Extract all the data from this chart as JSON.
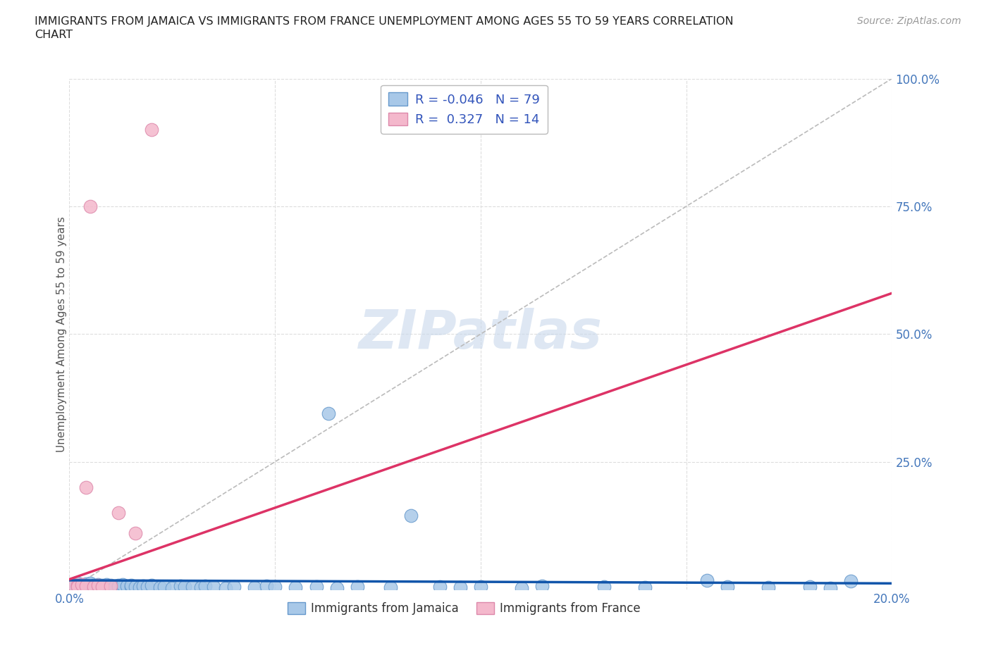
{
  "title_line1": "IMMIGRANTS FROM JAMAICA VS IMMIGRANTS FROM FRANCE UNEMPLOYMENT AMONG AGES 55 TO 59 YEARS CORRELATION",
  "title_line2": "CHART",
  "source": "Source: ZipAtlas.com",
  "ylabel": "Unemployment Among Ages 55 to 59 years",
  "xlim": [
    0.0,
    0.2
  ],
  "ylim": [
    0.0,
    1.0
  ],
  "jamaica_color": "#A8C8E8",
  "jamaica_edge_color": "#6699CC",
  "france_color": "#F4B8CC",
  "france_edge_color": "#DD88AA",
  "jamaica_trend_color": "#1155AA",
  "france_trend_color": "#DD3366",
  "diag_color": "#BBBBBB",
  "grid_color": "#DDDDDD",
  "tick_color": "#4477BB",
  "label_color": "#555555",
  "legend_label_jamaica": "Immigrants from Jamaica",
  "legend_label_france": "Immigrants from France",
  "jamaica_R": -0.046,
  "jamaica_N": 79,
  "france_R": 0.327,
  "france_N": 14,
  "jamaica_trend_x": [
    0.0,
    0.2
  ],
  "jamaica_trend_y": [
    0.018,
    0.012
  ],
  "france_trend_x": [
    0.0,
    0.2
  ],
  "france_trend_y": [
    0.02,
    0.58
  ],
  "watermark": "ZIPatlas",
  "watermark_color": "#C8D8EC",
  "jamaica_points": [
    [
      0.001,
      0.01
    ],
    [
      0.001,
      0.005
    ],
    [
      0.002,
      0.008
    ],
    [
      0.002,
      0.004
    ],
    [
      0.002,
      0.012
    ],
    [
      0.003,
      0.006
    ],
    [
      0.003,
      0.009
    ],
    [
      0.003,
      0.005
    ],
    [
      0.004,
      0.007
    ],
    [
      0.004,
      0.003
    ],
    [
      0.004,
      0.011
    ],
    [
      0.004,
      0.008
    ],
    [
      0.005,
      0.005
    ],
    [
      0.005,
      0.009
    ],
    [
      0.005,
      0.006
    ],
    [
      0.005,
      0.012
    ],
    [
      0.006,
      0.004
    ],
    [
      0.006,
      0.008
    ],
    [
      0.006,
      0.006
    ],
    [
      0.007,
      0.007
    ],
    [
      0.007,
      0.005
    ],
    [
      0.007,
      0.01
    ],
    [
      0.008,
      0.004
    ],
    [
      0.008,
      0.008
    ],
    [
      0.008,
      0.006
    ],
    [
      0.009,
      0.009
    ],
    [
      0.009,
      0.005
    ],
    [
      0.009,
      0.007
    ],
    [
      0.01,
      0.006
    ],
    [
      0.01,
      0.008
    ],
    [
      0.01,
      0.004
    ],
    [
      0.011,
      0.007
    ],
    [
      0.011,
      0.005
    ],
    [
      0.012,
      0.008
    ],
    [
      0.012,
      0.006
    ],
    [
      0.013,
      0.004
    ],
    [
      0.013,
      0.009
    ],
    [
      0.014,
      0.007
    ],
    [
      0.015,
      0.005
    ],
    [
      0.015,
      0.008
    ],
    [
      0.016,
      0.006
    ],
    [
      0.017,
      0.004
    ],
    [
      0.018,
      0.007
    ],
    [
      0.019,
      0.005
    ],
    [
      0.02,
      0.008
    ],
    [
      0.022,
      0.004
    ],
    [
      0.023,
      0.006
    ],
    [
      0.025,
      0.003
    ],
    [
      0.027,
      0.007
    ],
    [
      0.028,
      0.005
    ],
    [
      0.03,
      0.006
    ],
    [
      0.032,
      0.004
    ],
    [
      0.033,
      0.007
    ],
    [
      0.035,
      0.005
    ],
    [
      0.038,
      0.003
    ],
    [
      0.04,
      0.006
    ],
    [
      0.045,
      0.004
    ],
    [
      0.048,
      0.007
    ],
    [
      0.05,
      0.005
    ],
    [
      0.055,
      0.004
    ],
    [
      0.06,
      0.006
    ],
    [
      0.063,
      0.345
    ],
    [
      0.065,
      0.003
    ],
    [
      0.07,
      0.005
    ],
    [
      0.078,
      0.004
    ],
    [
      0.083,
      0.145
    ],
    [
      0.09,
      0.006
    ],
    [
      0.095,
      0.004
    ],
    [
      0.1,
      0.005
    ],
    [
      0.11,
      0.003
    ],
    [
      0.115,
      0.007
    ],
    [
      0.13,
      0.005
    ],
    [
      0.14,
      0.004
    ],
    [
      0.155,
      0.018
    ],
    [
      0.16,
      0.006
    ],
    [
      0.17,
      0.004
    ],
    [
      0.18,
      0.005
    ],
    [
      0.185,
      0.003
    ],
    [
      0.19,
      0.016
    ]
  ],
  "france_points": [
    [
      0.001,
      0.01
    ],
    [
      0.002,
      0.008
    ],
    [
      0.002,
      0.006
    ],
    [
      0.003,
      0.009
    ],
    [
      0.004,
      0.007
    ],
    [
      0.004,
      0.2
    ],
    [
      0.005,
      0.75
    ],
    [
      0.006,
      0.005
    ],
    [
      0.007,
      0.008
    ],
    [
      0.008,
      0.006
    ],
    [
      0.01,
      0.007
    ],
    [
      0.012,
      0.15
    ],
    [
      0.016,
      0.11
    ],
    [
      0.02,
      0.9
    ]
  ]
}
